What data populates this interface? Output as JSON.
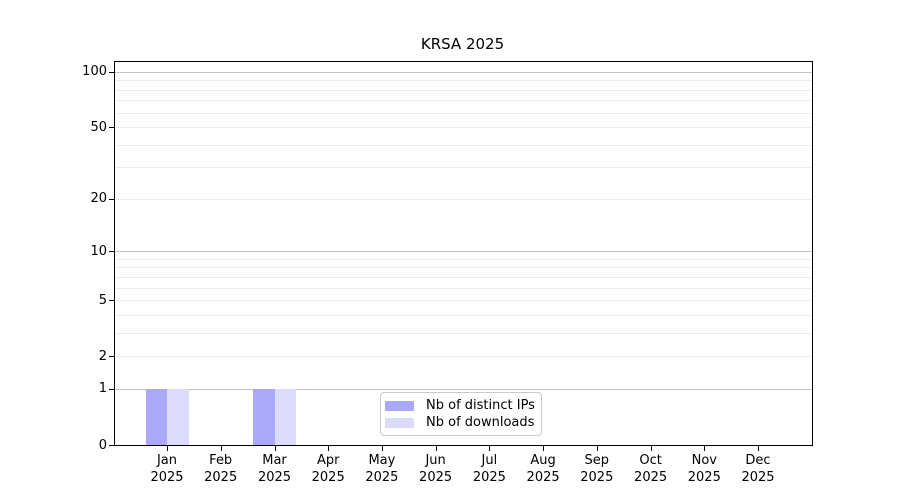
{
  "chart_data": {
    "type": "bar",
    "title": "KRSA 2025",
    "scale": "log1p",
    "year": "2025",
    "categories": [
      "Jan",
      "Feb",
      "Mar",
      "Apr",
      "May",
      "Jun",
      "Jul",
      "Aug",
      "Sep",
      "Oct",
      "Nov",
      "Dec"
    ],
    "series": [
      {
        "name": "Nb of distinct IPs",
        "color": "#a9a9f7",
        "values": [
          1,
          0,
          1,
          0,
          0,
          0,
          0,
          0,
          0,
          0,
          0,
          0
        ]
      },
      {
        "name": "Nb of downloads",
        "color": "#dcdcfa",
        "values": [
          1,
          0,
          1,
          0,
          0,
          0,
          0,
          0,
          0,
          0,
          0,
          0
        ]
      }
    ],
    "y_ticks": [
      0,
      1,
      2,
      5,
      10,
      20,
      50,
      100
    ],
    "y_gridlines_minor": [
      2,
      3,
      4,
      5,
      6,
      7,
      8,
      9,
      20,
      30,
      40,
      50,
      60,
      70,
      80,
      90
    ],
    "y_gridlines_major": [
      1,
      10,
      100
    ],
    "ylim": [
      0,
      113
    ],
    "xlabel": "",
    "ylabel": "",
    "grid": true,
    "legend_position": "inside-bottom-center"
  }
}
